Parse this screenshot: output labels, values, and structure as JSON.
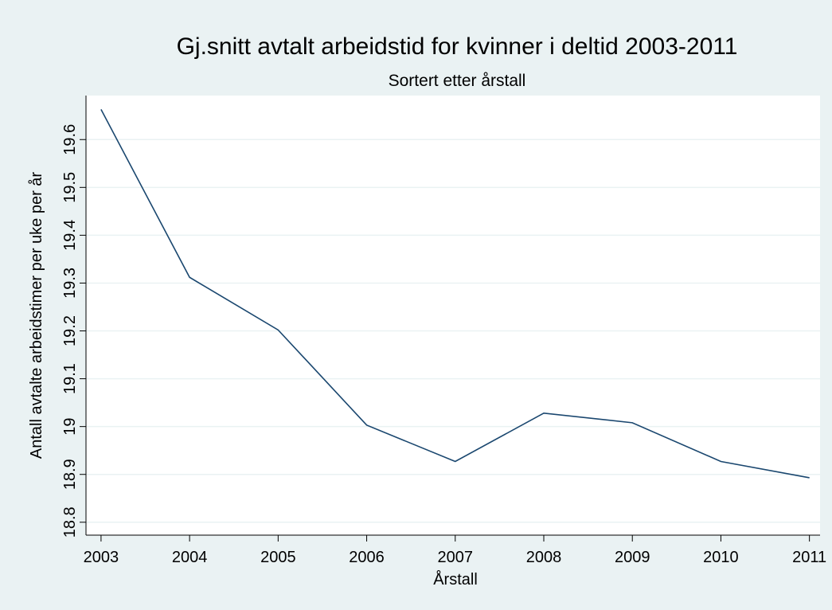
{
  "chart_data": {
    "type": "line",
    "title": "Gj.snitt avtalt arbeidstid for kvinner i deltid 2003-2011",
    "subtitle": "Sortert etter årstall",
    "x_label": "Årstall",
    "y_label": "Antall avtalte arbeidstimer per uke per år",
    "x": [
      2003,
      2004,
      2005,
      2006,
      2007,
      2008,
      2009,
      2010,
      2011
    ],
    "series": [
      {
        "name": "Antall avtalte arbeidstimer per uke per år",
        "color": "#1a476f",
        "values": [
          19.663,
          19.312,
          19.202,
          19.003,
          18.927,
          19.028,
          19.008,
          18.927,
          18.893
        ]
      }
    ],
    "xlim": [
      2002.83,
      2011.12
    ],
    "xticks": [
      2003,
      2004,
      2005,
      2006,
      2007,
      2008,
      2009,
      2010,
      2011
    ],
    "ylim": [
      18.773,
      19.692
    ],
    "yticks": [
      18.8,
      18.9,
      19,
      19.1,
      19.2,
      19.3,
      19.4,
      19.5,
      19.6
    ],
    "grid": true
  }
}
